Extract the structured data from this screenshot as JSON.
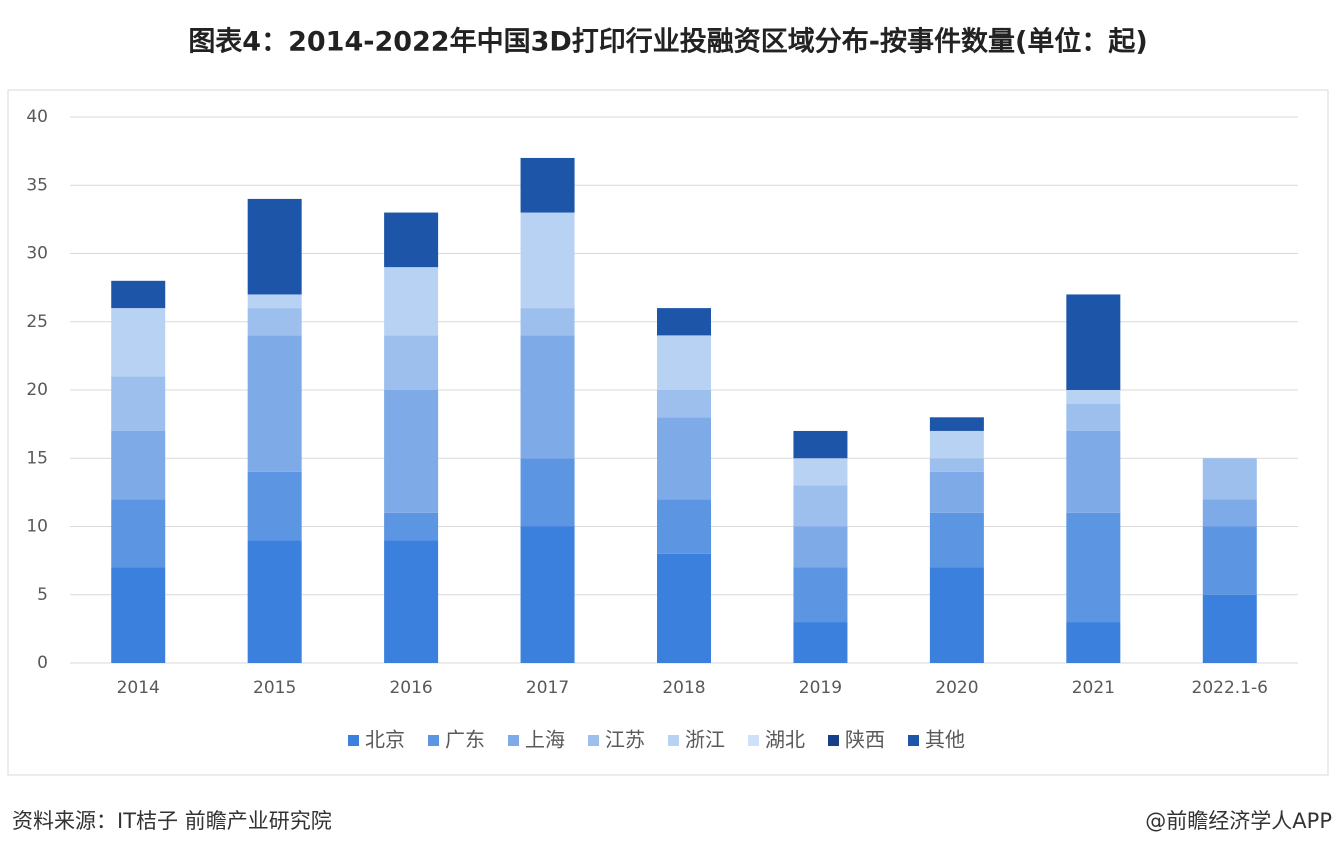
{
  "chart_data": {
    "type": "stacked_bar",
    "title": "图表4：2014-2022年中国3D打印行业投融资区域分布-按事件数量(单位：起)",
    "categories": [
      "2014",
      "2015",
      "2016",
      "2017",
      "2018",
      "2019",
      "2020",
      "2021",
      "2022.1-6"
    ],
    "series": [
      {
        "name": "北京",
        "color": "#3b80dc",
        "values": [
          7,
          9,
          9,
          10,
          8,
          3,
          7,
          3,
          5
        ]
      },
      {
        "name": "广东",
        "color": "#5c95e2",
        "values": [
          5,
          5,
          2,
          5,
          4,
          4,
          4,
          8,
          5
        ]
      },
      {
        "name": "上海",
        "color": "#7eaae8",
        "values": [
          5,
          10,
          9,
          9,
          6,
          3,
          3,
          6,
          2
        ]
      },
      {
        "name": "江苏",
        "color": "#9cbfee",
        "values": [
          4,
          2,
          4,
          2,
          2,
          3,
          1,
          2,
          3
        ]
      },
      {
        "name": "浙江",
        "color": "#b8d2f4",
        "values": [
          5,
          1,
          5,
          7,
          4,
          2,
          2,
          1,
          0
        ]
      },
      {
        "name": "湖北",
        "color": "#cfe1f8",
        "values": [
          0,
          0,
          0,
          0,
          0,
          0,
          0,
          0,
          0
        ]
      },
      {
        "name": "陕西",
        "color": "#173f88",
        "values": [
          0,
          0,
          0,
          0,
          0,
          0,
          0,
          0,
          0
        ]
      },
      {
        "name": "其他",
        "color": "#1d55a8",
        "values": [
          2,
          7,
          4,
          4,
          2,
          2,
          1,
          7,
          0
        ]
      }
    ],
    "ylim": [
      0,
      40
    ],
    "yticks": [
      0,
      5,
      10,
      15,
      20,
      25,
      30,
      35,
      40
    ],
    "grid": true,
    "legend": "bottom"
  },
  "footer": {
    "source": "资料来源：IT桔子 前瞻产业研究院",
    "credit": "@前瞻经济学人APP"
  }
}
